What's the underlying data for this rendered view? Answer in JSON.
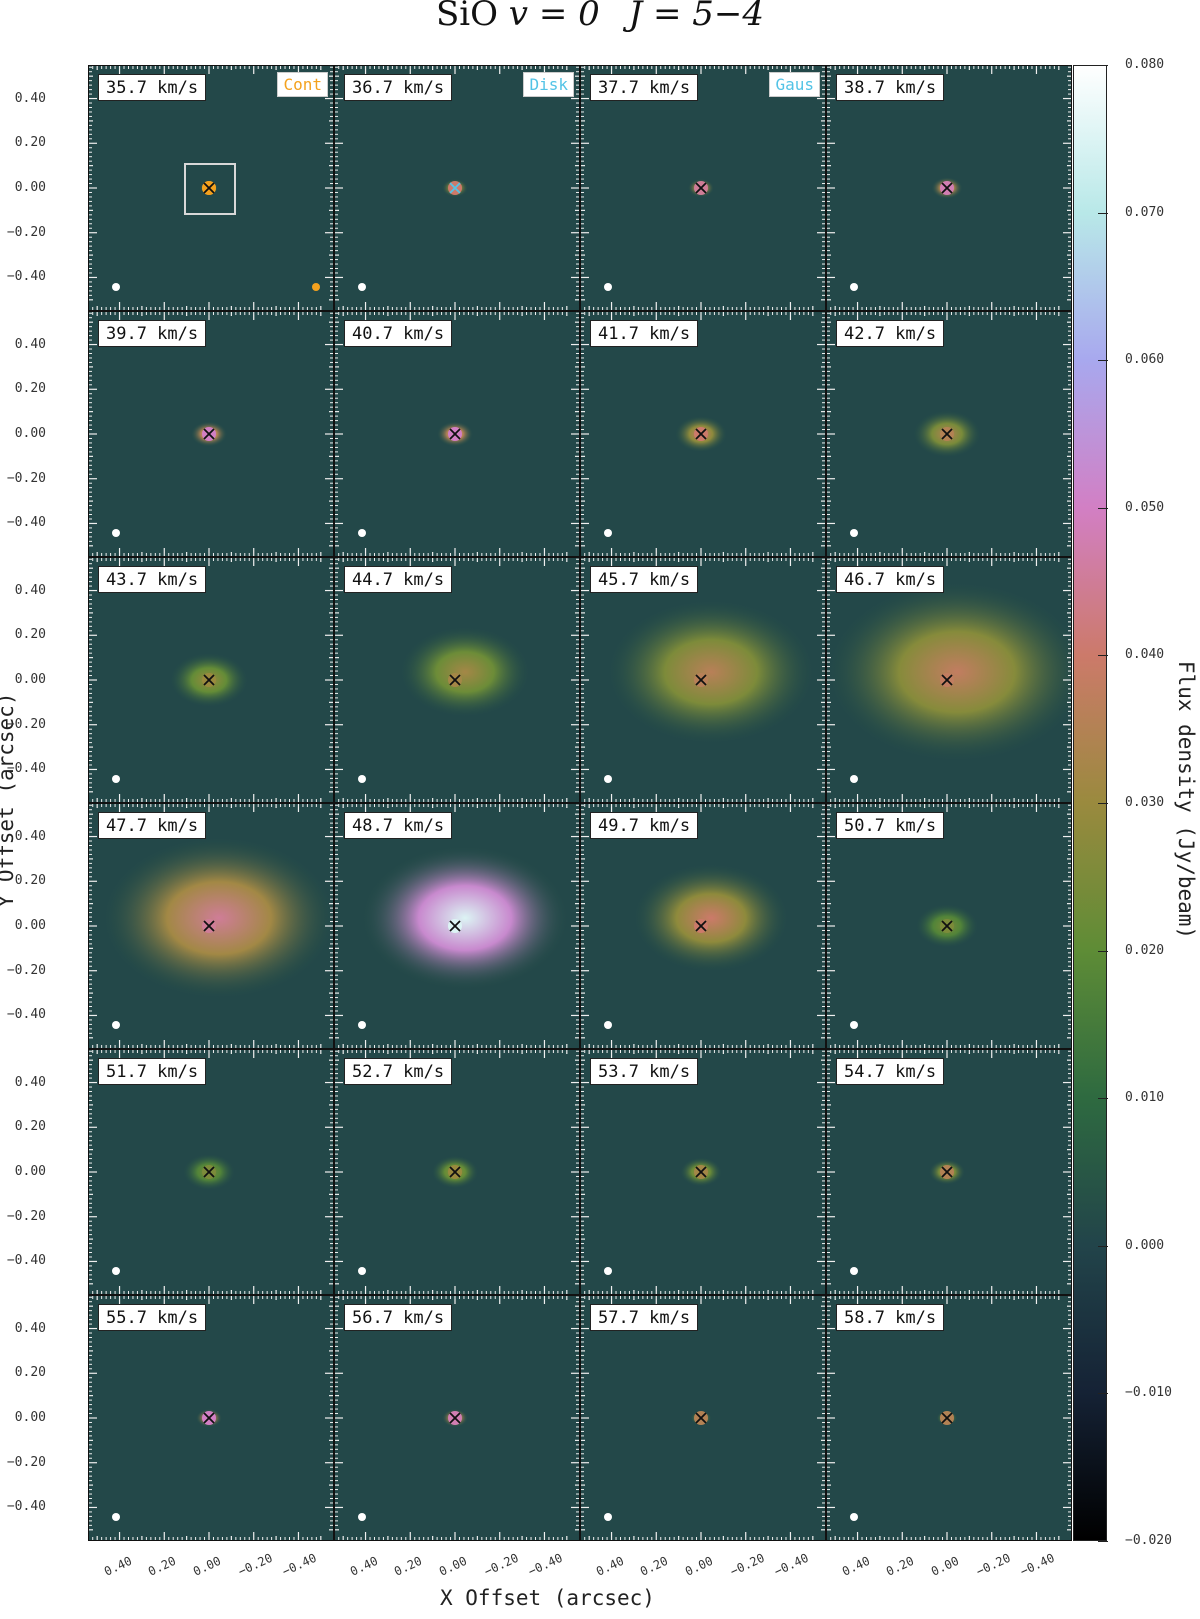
{
  "title": {
    "prefix": "SiO ",
    "v": "v = 0",
    "j": "J = 5−4"
  },
  "axes": {
    "x_title": "X Offset (arcsec)",
    "y_title": "Y Offset (arcsec)",
    "y_ticks": [
      "0.40",
      "0.20",
      "0.00",
      "−0.20",
      "−0.40"
    ],
    "x_ticks": [
      "0.40",
      "0.20",
      "0.00",
      "−0.20",
      "−0.40"
    ]
  },
  "colorbar": {
    "title": "Flux density (Jy/beam)",
    "ticks": [
      "0.080",
      "0.070",
      "0.060",
      "0.050",
      "0.040",
      "0.030",
      "0.020",
      "0.010",
      "0.000",
      "−0.010",
      "−0.020"
    ],
    "stops": [
      "#000000",
      "#152235",
      "#22444a",
      "#2e6a40",
      "#5e8c36",
      "#9a8a3e",
      "#cc7a6a",
      "#d27fc4",
      "#a8a8ee",
      "#b8e8e8",
      "#ffffff"
    ]
  },
  "markers": {
    "cont": "Cont",
    "disk": "Disk",
    "gaus": "Gaus",
    "cont_color": "#f4a21e",
    "disk_color": "#53c3e6",
    "gaus_color": "#53c3e6"
  },
  "chart_data": {
    "type": "heatmap",
    "title": "SiO v = 0 J = 5−4",
    "xlabel": "X Offset (arcsec)",
    "ylabel": "Y Offset (arcsec)",
    "xlim": [
      0.55,
      -0.55
    ],
    "ylim": [
      -0.55,
      0.55
    ],
    "color_range": [
      -0.02,
      0.08
    ],
    "colorbar_label": "Flux density (Jy/beam)",
    "channels": [
      {
        "label": "35.7 km/s",
        "velocity": 35.7,
        "peak": 0.035,
        "extent": 0.03
      },
      {
        "label": "36.7 km/s",
        "velocity": 36.7,
        "peak": 0.04,
        "extent": 0.05
      },
      {
        "label": "37.7 km/s",
        "velocity": 37.7,
        "peak": 0.045,
        "extent": 0.05
      },
      {
        "label": "38.7 km/s",
        "velocity": 38.7,
        "peak": 0.048,
        "extent": 0.06
      },
      {
        "label": "39.7 km/s",
        "velocity": 39.7,
        "peak": 0.05,
        "extent": 0.07
      },
      {
        "label": "40.7 km/s",
        "velocity": 40.7,
        "peak": 0.05,
        "extent": 0.07
      },
      {
        "label": "41.7 km/s",
        "velocity": 41.7,
        "peak": 0.04,
        "extent": 0.1
      },
      {
        "label": "42.7 km/s",
        "velocity": 42.7,
        "peak": 0.035,
        "extent": 0.13
      },
      {
        "label": "43.7 km/s",
        "velocity": 43.7,
        "peak": 0.03,
        "extent": 0.15
      },
      {
        "label": "44.7 km/s",
        "velocity": 44.7,
        "peak": 0.032,
        "extent": 0.25
      },
      {
        "label": "45.7 km/s",
        "velocity": 45.7,
        "peak": 0.036,
        "extent": 0.4
      },
      {
        "label": "46.7 km/s",
        "velocity": 46.7,
        "peak": 0.038,
        "extent": 0.5
      },
      {
        "label": "47.7 km/s",
        "velocity": 47.7,
        "peak": 0.045,
        "extent": 0.45
      },
      {
        "label": "48.7 km/s",
        "velocity": 48.7,
        "peak": 0.075,
        "extent": 0.4
      },
      {
        "label": "49.7 km/s",
        "velocity": 49.7,
        "peak": 0.04,
        "extent": 0.3
      },
      {
        "label": "50.7 km/s",
        "velocity": 50.7,
        "peak": 0.025,
        "extent": 0.12
      },
      {
        "label": "51.7 km/s",
        "velocity": 51.7,
        "peak": 0.025,
        "extent": 0.1
      },
      {
        "label": "52.7 km/s",
        "velocity": 52.7,
        "peak": 0.03,
        "extent": 0.09
      },
      {
        "label": "53.7 km/s",
        "velocity": 53.7,
        "peak": 0.032,
        "extent": 0.08
      },
      {
        "label": "54.7 km/s",
        "velocity": 54.7,
        "peak": 0.035,
        "extent": 0.07
      },
      {
        "label": "55.7 km/s",
        "velocity": 55.7,
        "peak": 0.05,
        "extent": 0.05
      },
      {
        "label": "56.7 km/s",
        "velocity": 56.7,
        "peak": 0.048,
        "extent": 0.05
      },
      {
        "label": "57.7 km/s",
        "velocity": 57.7,
        "peak": 0.035,
        "extent": 0.04
      },
      {
        "label": "58.7 km/s",
        "velocity": 58.7,
        "peak": 0.035,
        "extent": 0.04
      }
    ]
  }
}
